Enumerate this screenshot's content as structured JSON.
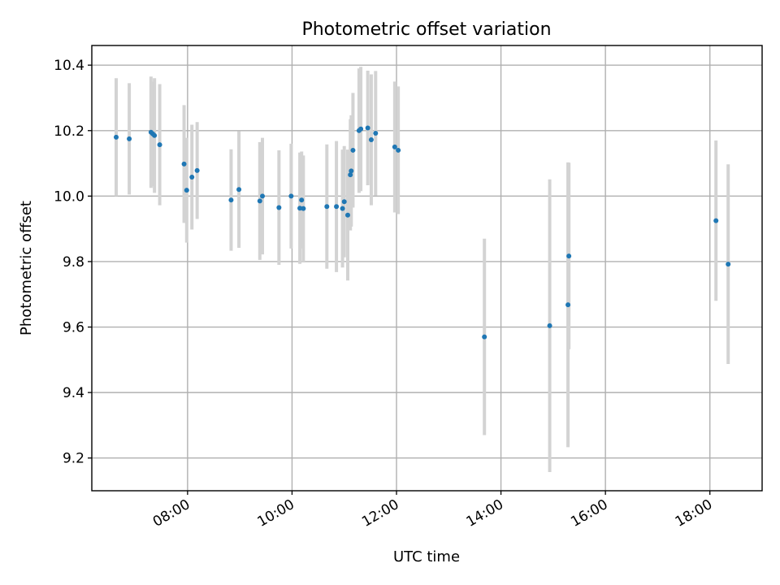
{
  "chart_data": {
    "type": "scatter",
    "title": "Photometric offset variation",
    "xlabel": "UTC time",
    "ylabel": "Photometric offset",
    "x_unit": "UTC time (HH:MM)",
    "xlim": [
      "06:10",
      "19:00"
    ],
    "ylim": [
      9.1,
      10.46
    ],
    "x_ticks": [
      "08:00",
      "10:00",
      "12:00",
      "14:00",
      "16:00",
      "18:00"
    ],
    "y_ticks": [
      9.2,
      9.4,
      9.6,
      9.8,
      10.0,
      10.2,
      10.4
    ],
    "grid": true,
    "marker_color": "#1f77b4",
    "errorbar_color": "#d3d3d3",
    "points": [
      {
        "x": "06:38",
        "y": 10.18,
        "err": 0.18
      },
      {
        "x": "06:53",
        "y": 10.175,
        "err": 0.17
      },
      {
        "x": "07:18",
        "y": 10.195,
        "err": 0.17
      },
      {
        "x": "07:20",
        "y": 10.19,
        "err": 0.16
      },
      {
        "x": "07:22",
        "y": 10.185,
        "err": 0.175
      },
      {
        "x": "07:28",
        "y": 10.157,
        "err": 0.185
      },
      {
        "x": "07:56",
        "y": 10.098,
        "err": 0.18
      },
      {
        "x": "07:59",
        "y": 10.018,
        "err": 0.16
      },
      {
        "x": "08:05",
        "y": 10.058,
        "err": 0.16
      },
      {
        "x": "08:11",
        "y": 10.078,
        "err": 0.148
      },
      {
        "x": "08:50",
        "y": 9.988,
        "err": 0.155
      },
      {
        "x": "08:59",
        "y": 10.02,
        "err": 0.178
      },
      {
        "x": "09:23",
        "y": 9.985,
        "err": 0.18
      },
      {
        "x": "09:26",
        "y": 10.0,
        "err": 0.178
      },
      {
        "x": "09:45",
        "y": 9.965,
        "err": 0.175
      },
      {
        "x": "09:59",
        "y": 10.0,
        "err": 0.16
      },
      {
        "x": "10:09",
        "y": 9.963,
        "err": 0.17
      },
      {
        "x": "10:11",
        "y": 9.988,
        "err": 0.148
      },
      {
        "x": "10:13",
        "y": 9.962,
        "err": 0.162
      },
      {
        "x": "10:40",
        "y": 9.968,
        "err": 0.19
      },
      {
        "x": "10:51",
        "y": 9.968,
        "err": 0.2
      },
      {
        "x": "10:58",
        "y": 9.962,
        "err": 0.18
      },
      {
        "x": "11:00",
        "y": 9.983,
        "err": 0.17
      },
      {
        "x": "11:04",
        "y": 9.942,
        "err": 0.2
      },
      {
        "x": "11:07",
        "y": 10.065,
        "err": 0.17
      },
      {
        "x": "11:08",
        "y": 10.077,
        "err": 0.17
      },
      {
        "x": "11:10",
        "y": 10.14,
        "err": 0.175
      },
      {
        "x": "11:17",
        "y": 10.2,
        "err": 0.19
      },
      {
        "x": "11:19",
        "y": 10.205,
        "err": 0.19
      },
      {
        "x": "11:27",
        "y": 10.208,
        "err": 0.175
      },
      {
        "x": "11:31",
        "y": 10.172,
        "err": 0.2
      },
      {
        "x": "11:36",
        "y": 10.192,
        "err": 0.19
      },
      {
        "x": "11:58",
        "y": 10.15,
        "err": 0.2
      },
      {
        "x": "12:02",
        "y": 10.14,
        "err": 0.195
      },
      {
        "x": "13:41",
        "y": 9.57,
        "err": 0.3
      },
      {
        "x": "14:56",
        "y": 9.604,
        "err": 0.447
      },
      {
        "x": "15:17",
        "y": 9.668,
        "err": 0.435
      },
      {
        "x": "15:18",
        "y": 9.817,
        "err": 0.285
      },
      {
        "x": "18:07",
        "y": 9.925,
        "err": 0.245
      },
      {
        "x": "18:21",
        "y": 9.792,
        "err": 0.305
      }
    ]
  }
}
